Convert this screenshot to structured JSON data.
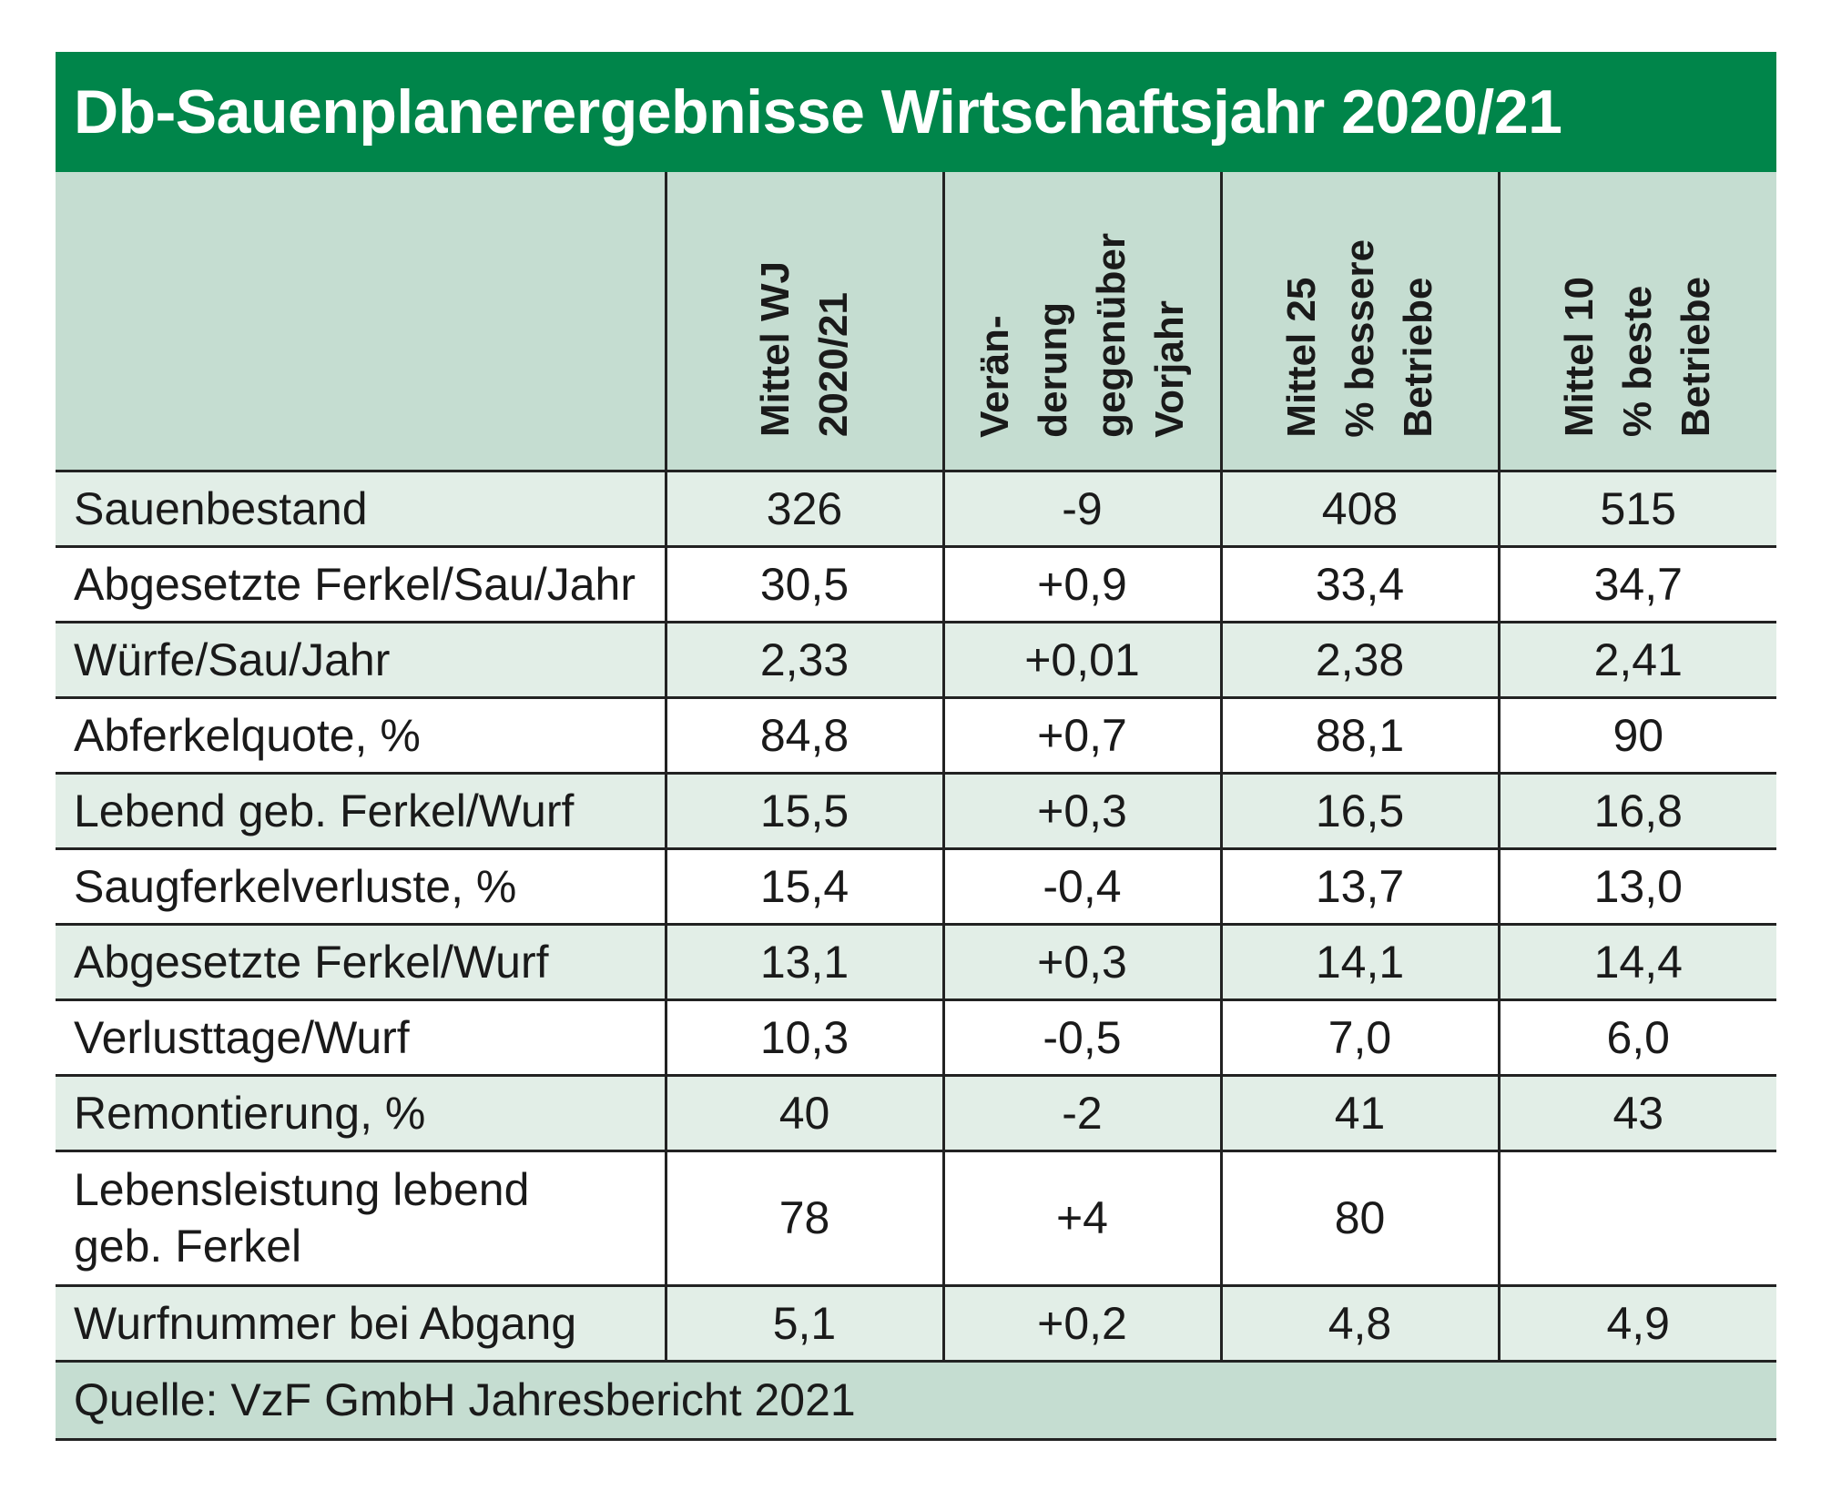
{
  "title": "Db-Sauenplanerergebnisse Wirtschaftsjahr 2020/21",
  "columns": [
    "",
    "Mittel WJ\n2020/21",
    "Verän-\nderung\ngegenüber\nVorjahr",
    "Mittel 25\n% bessere\nBetriebe",
    "Mittel 10\n% beste\nBetriebe"
  ],
  "rows": [
    {
      "label": "Sauenbestand",
      "values": [
        "326",
        "-9",
        "408",
        "515"
      ]
    },
    {
      "label": "Abgesetzte Ferkel/Sau/Jahr",
      "values": [
        "30,5",
        "+0,9",
        "33,4",
        "34,7"
      ]
    },
    {
      "label": "Würfe/Sau/Jahr",
      "values": [
        "2,33",
        "+0,01",
        "2,38",
        "2,41"
      ]
    },
    {
      "label": "Abferkelquote, %",
      "values": [
        "84,8",
        "+0,7",
        "88,1",
        "90"
      ]
    },
    {
      "label": "Lebend geb. Ferkel/Wurf",
      "values": [
        "15,5",
        "+0,3",
        "16,5",
        "16,8"
      ]
    },
    {
      "label": "Saugferkelverluste, %",
      "values": [
        "15,4",
        "-0,4",
        "13,7",
        "13,0"
      ]
    },
    {
      "label": "Abgesetzte Ferkel/Wurf",
      "values": [
        "13,1",
        "+0,3",
        "14,1",
        "14,4"
      ]
    },
    {
      "label": "Verlusttage/Wurf",
      "values": [
        "10,3",
        "-0,5",
        "7,0",
        "6,0"
      ]
    },
    {
      "label": "Remontierung, %",
      "values": [
        "40",
        "-2",
        "41",
        "43"
      ]
    },
    {
      "label": "Lebensleistung lebend\ngeb. Ferkel",
      "values": [
        "78",
        "+4",
        "80",
        ""
      ]
    },
    {
      "label": "Wurfnummer bei Abgang",
      "values": [
        "5,1",
        "+0,2",
        "4,8",
        "4,9"
      ]
    }
  ],
  "source": "Quelle: VzF GmbH Jahresbericht 2021",
  "colors": {
    "title_bg": "#00854a",
    "header_bg": "#c5ddd1",
    "row_shade": "#e2eee7"
  }
}
